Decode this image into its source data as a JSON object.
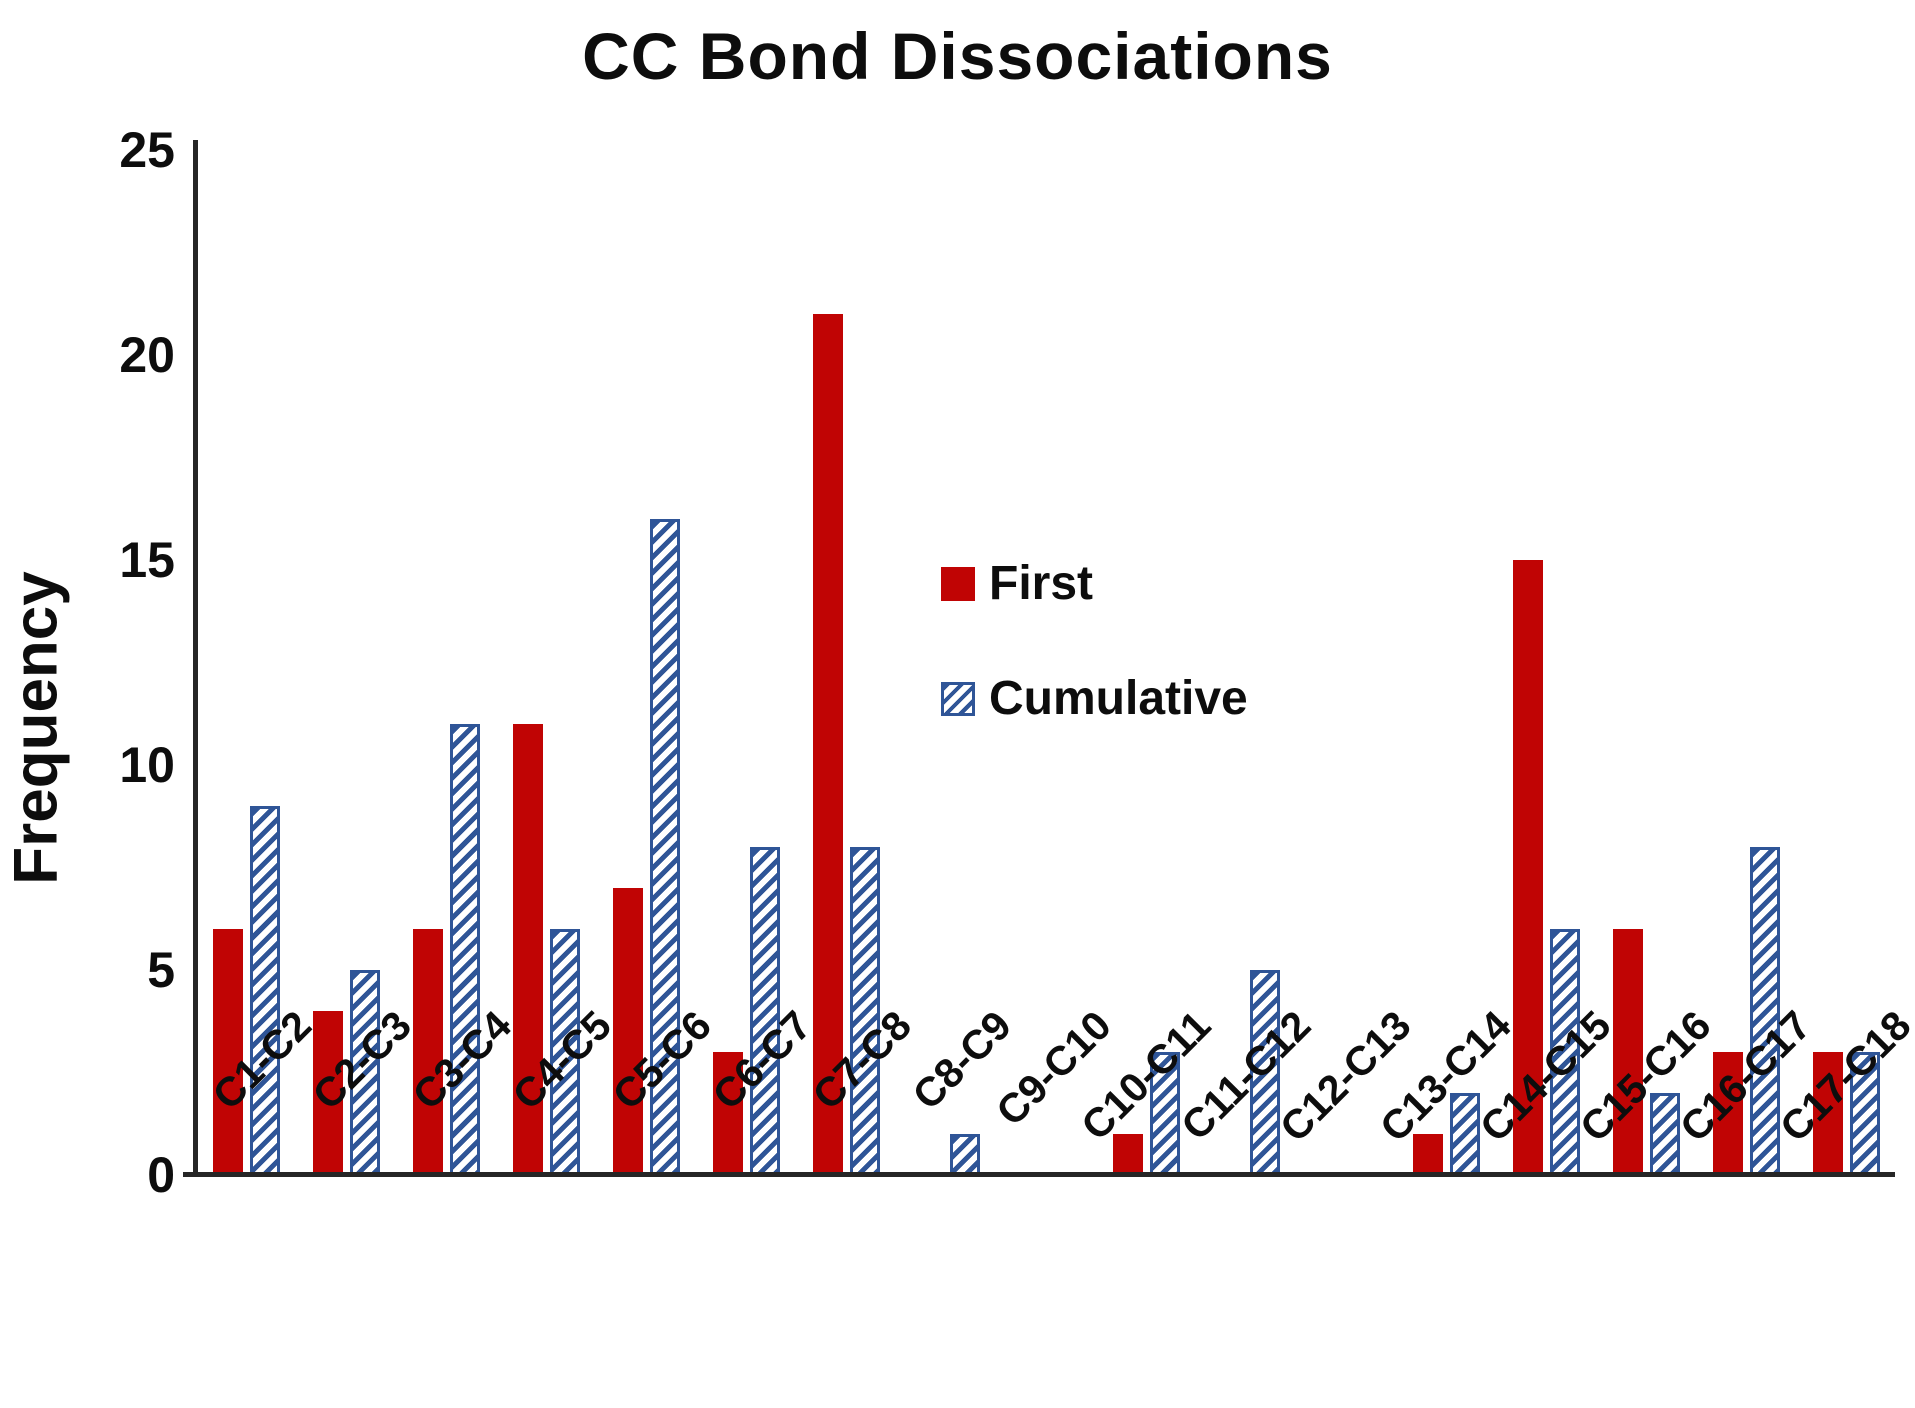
{
  "chart_data": {
    "type": "bar",
    "title": "CC Bond Dissociations",
    "xlabel": "",
    "ylabel": "Frequency",
    "ylim": [
      0,
      25
    ],
    "yticks": [
      0,
      5,
      10,
      15,
      20,
      25
    ],
    "grid": false,
    "legend_position": "center-right-upper",
    "axis_color": "#262626",
    "categories": [
      "C1-C2",
      "C2-C3",
      "C3-C4",
      "C4-C5",
      "C5-C6",
      "C6-C7",
      "C7-C8",
      "C8-C9",
      "C9-C10",
      "C10-C11",
      "C11-C12",
      "C12-C13",
      "C13-C14",
      "C14-C15",
      "C15-C16",
      "C16-C17",
      "C17-C18"
    ],
    "series": [
      {
        "name": "First",
        "style": "solid",
        "color": "#C00404",
        "values": [
          6,
          4,
          6,
          11,
          7,
          3,
          21,
          0,
          0,
          1,
          0,
          0,
          1,
          15,
          6,
          3,
          3
        ]
      },
      {
        "name": "Cumulative",
        "style": "hatched",
        "color": "#2F5597",
        "hatch": "diagonal-forward",
        "values": [
          9,
          5,
          11,
          6,
          16,
          8,
          8,
          1,
          0,
          3,
          5,
          0,
          2,
          6,
          2,
          8,
          3
        ]
      }
    ]
  }
}
